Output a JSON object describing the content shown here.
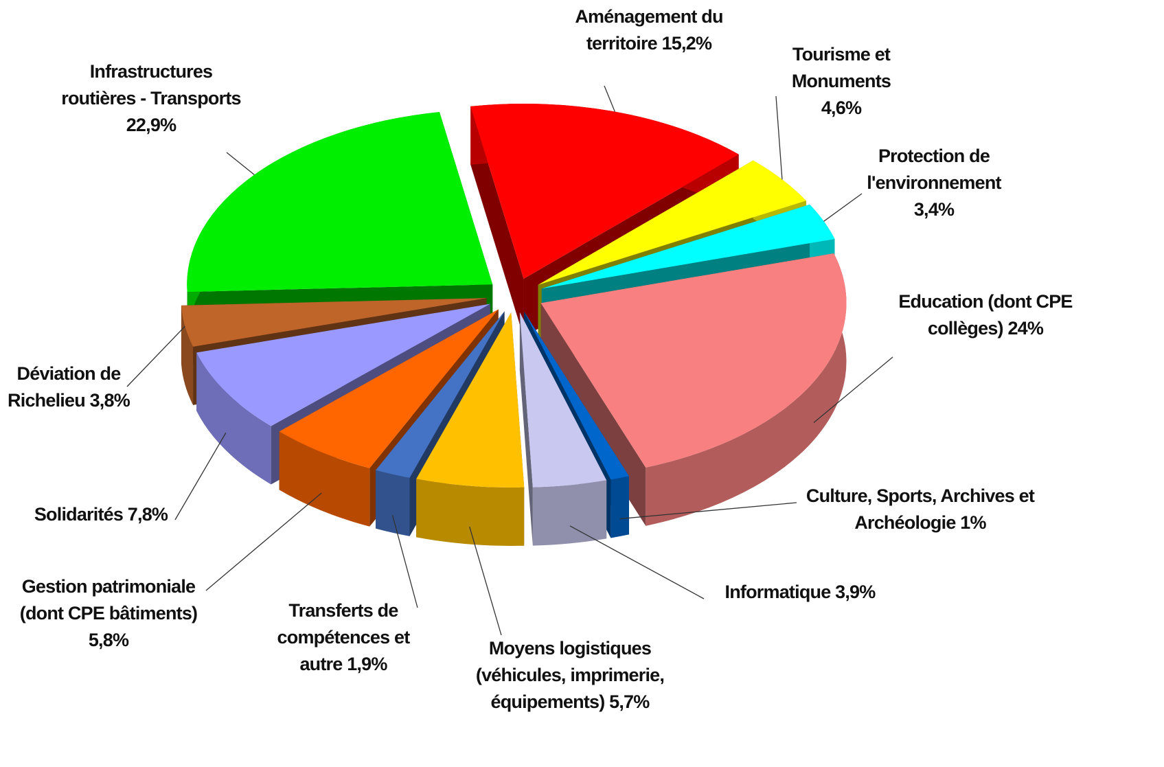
{
  "chart_data": {
    "type": "pie",
    "categories": [
      "Aménagement du territoire",
      "Tourisme et Monuments",
      "Protection de l'environnement",
      "Education (dont CPE collèges)",
      "Culture, Sports, Archives et Archéologie",
      "Informatique",
      "Moyens logistiques (véhicules, imprimerie, équipements)",
      "Transferts de compétences et autre",
      "Gestion patrimoniale (dont CPE bâtiments)",
      "Solidarités",
      "Déviation de Richelieu",
      "Infrastructures routières - Transports"
    ],
    "values": [
      15.2,
      4.6,
      3.4,
      24,
      1,
      3.9,
      5.7,
      1.9,
      5.8,
      7.8,
      3.8,
      22.9
    ],
    "value_labels": [
      "15,2%",
      "4,6%",
      "3,4%",
      "24%",
      "1%",
      "3,9%",
      "5,7%",
      "1,9%",
      "5,8%",
      "7,8%",
      "3,8%",
      "22,9%"
    ],
    "colors": [
      "#ff0000",
      "#ffff00",
      "#00ffff",
      "#f88080",
      "#0066cc",
      "#c8c8f0",
      "#ffc000",
      "#4472c4",
      "#ff6600",
      "#9999ff",
      "#c0652a",
      "#00ee00"
    ]
  }
}
